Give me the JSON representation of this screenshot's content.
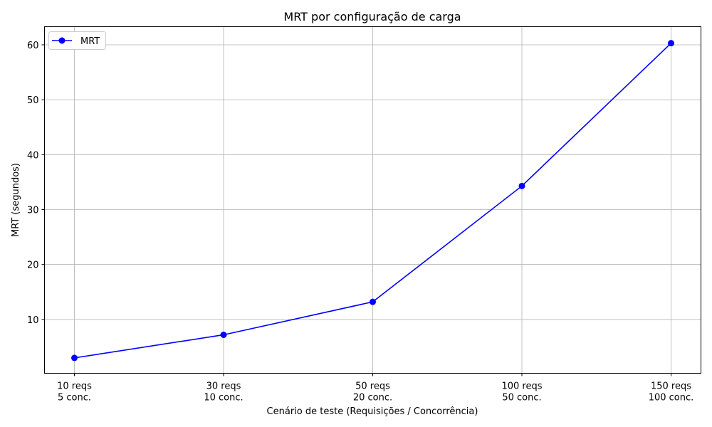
{
  "chart_data": {
    "type": "line",
    "title": "MRT por configuração de carga",
    "xlabel": "Cenário de teste (Requisições / Concorrência)",
    "ylabel": "MRT (segundos)",
    "categories": [
      [
        "10 reqs",
        "5 conc."
      ],
      [
        "30 reqs",
        "10 conc."
      ],
      [
        "50 reqs",
        "20 conc."
      ],
      [
        "100 reqs",
        "50 conc."
      ],
      [
        "150 reqs",
        "100 conc."
      ]
    ],
    "series": [
      {
        "name": "MRT",
        "color": "#0000ff",
        "marker": "circle",
        "values": [
          3.0,
          7.2,
          13.2,
          34.3,
          60.3
        ]
      }
    ],
    "yticks": [
      10,
      20,
      30,
      40,
      50,
      60
    ],
    "ylim": [
      0.2,
      63.3
    ],
    "grid": true,
    "legend_position": "top-left"
  }
}
